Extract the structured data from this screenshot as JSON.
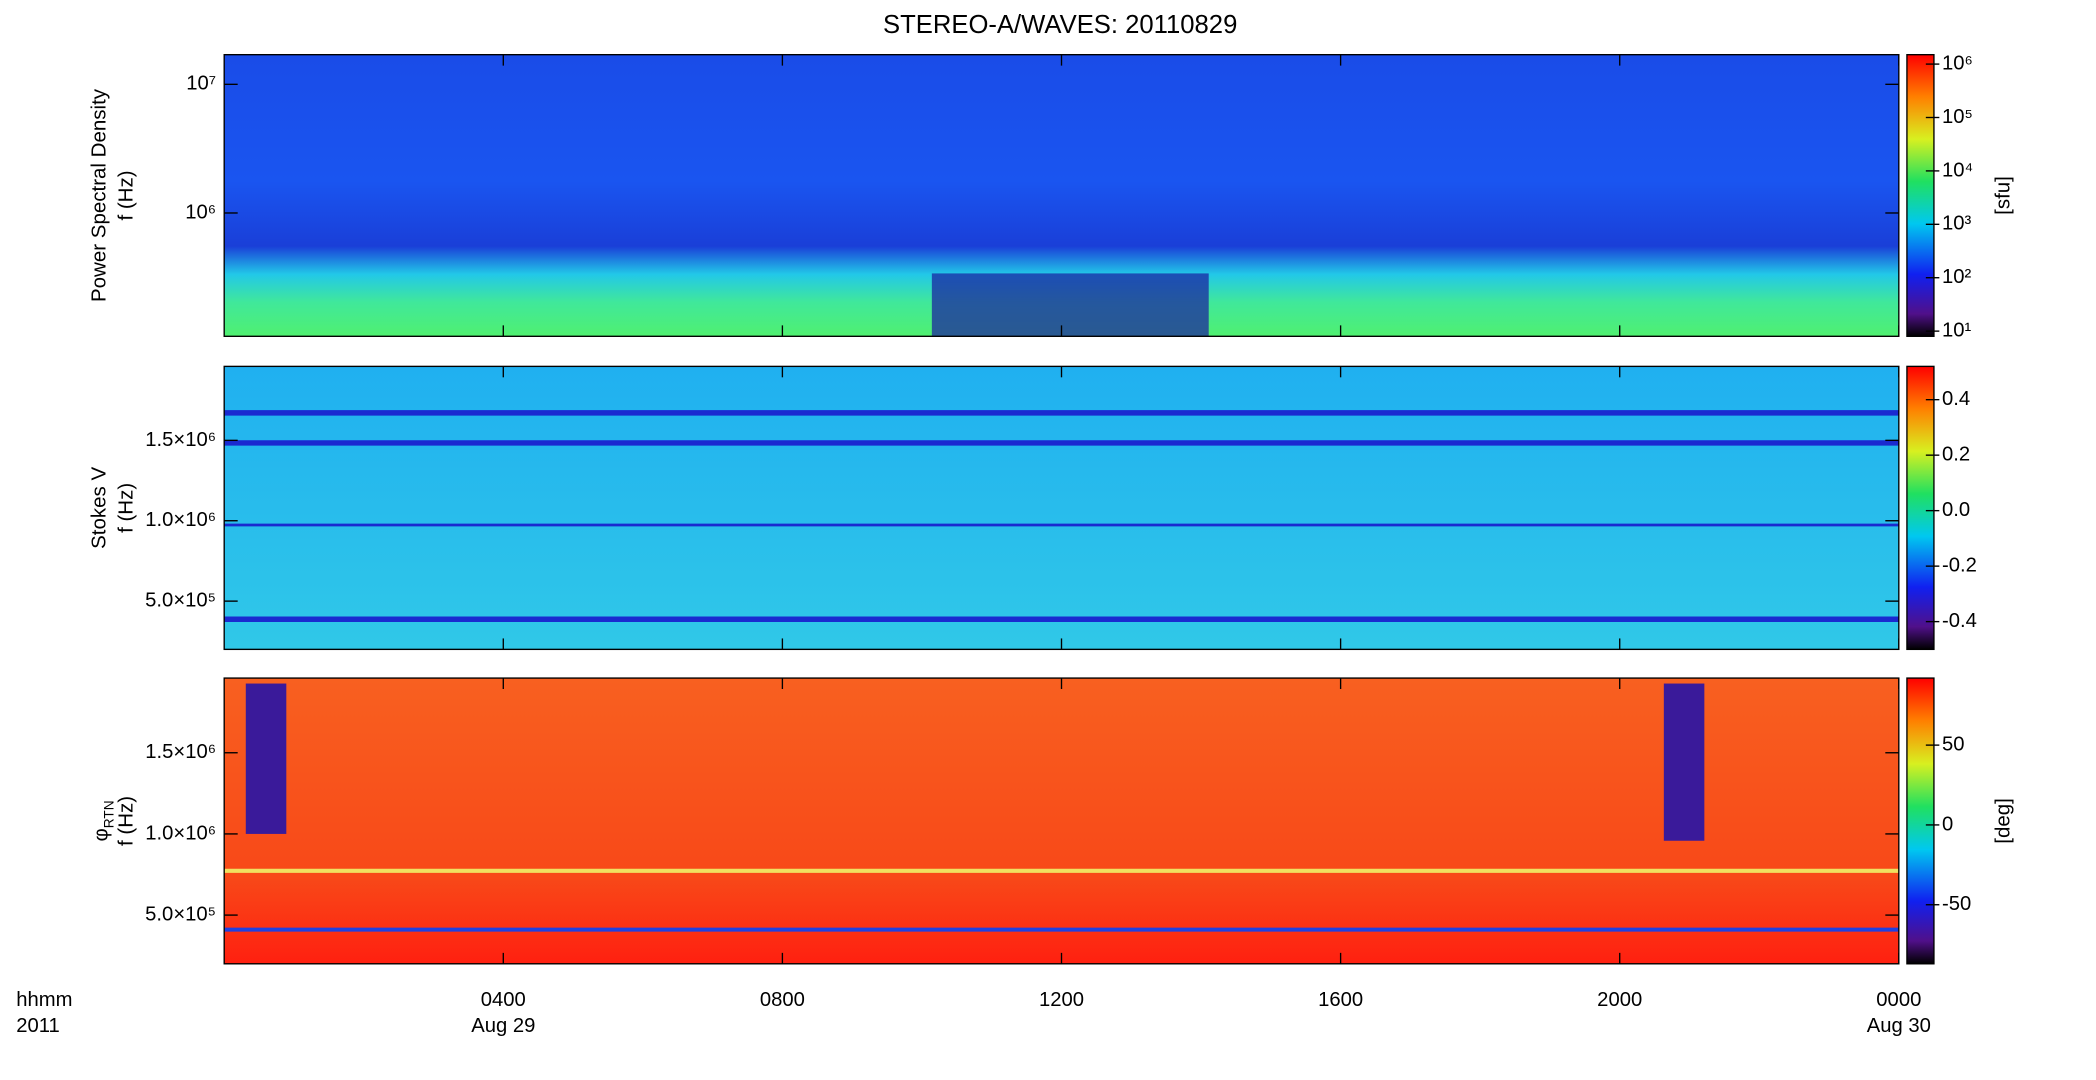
{
  "title": "STEREO-A/WAVES: 20110829",
  "chart_data": [
    {
      "type": "spectrogram",
      "quantity": "Power Spectral Density",
      "ylabel": "f (Hz)",
      "ylog": true,
      "ylim": [
        110000,
        17000000
      ],
      "yticks": [
        {
          "value": 1000000,
          "label": "10⁶"
        },
        {
          "value": 10000000,
          "label": "10⁷"
        }
      ],
      "clog": true,
      "clim": [
        8,
        1500000
      ],
      "cticks": [
        {
          "value": 10,
          "label": "10¹"
        },
        {
          "value": 100,
          "label": "10²"
        },
        {
          "value": 1000,
          "label": "10³"
        },
        {
          "value": 10000,
          "label": "10⁴"
        },
        {
          "value": 100000,
          "label": "10⁵"
        },
        {
          "value": 1000000,
          "label": "10⁶"
        }
      ],
      "clabel": "[sfu]"
    },
    {
      "type": "spectrogram",
      "quantity": "Stokes V",
      "ylabel": "f (Hz)",
      "ylog": false,
      "ylim": [
        200000,
        1960000
      ],
      "yticks": [
        {
          "value": 500000,
          "label": "5.0×10⁵"
        },
        {
          "value": 1000000,
          "label": "1.0×10⁶"
        },
        {
          "value": 1500000,
          "label": "1.5×10⁶"
        }
      ],
      "clog": false,
      "clim": [
        -0.5,
        0.52
      ],
      "cticks": [
        -0.4,
        -0.2,
        {
          "value": 0,
          "label": "0.0"
        },
        0.2,
        0.4
      ]
    },
    {
      "type": "spectrogram",
      "quantity": {
        "symbol": "φ",
        "subscript": "RTN"
      },
      "ylabel": "f (Hz)",
      "ylog": false,
      "ylim": [
        200000,
        1960000
      ],
      "yticks": [
        {
          "value": 500000,
          "label": "5.0×10⁵"
        },
        {
          "value": 1000000,
          "label": "1.0×10⁶"
        },
        {
          "value": 1500000,
          "label": "1.5×10⁶"
        }
      ],
      "clog": false,
      "clim": [
        -87,
        92
      ],
      "cticks": [
        -50,
        0,
        50
      ],
      "clabel": "[deg]"
    }
  ],
  "xaxis": {
    "xlim": [
      0,
      24
    ],
    "row_labels": [
      "hhmm",
      "2011"
    ],
    "xticks": [
      {
        "value": 4,
        "label": "0400"
      },
      {
        "value": 8,
        "label": "0800"
      },
      {
        "value": 12,
        "label": "1200"
      },
      {
        "value": 16,
        "label": "1600"
      },
      {
        "value": 20,
        "label": "2000"
      },
      {
        "value": 24,
        "label": "0000"
      }
    ],
    "date_labels": [
      {
        "value": 4,
        "label": "Aug 29"
      },
      {
        "value": 24,
        "label": "Aug 30"
      }
    ]
  }
}
